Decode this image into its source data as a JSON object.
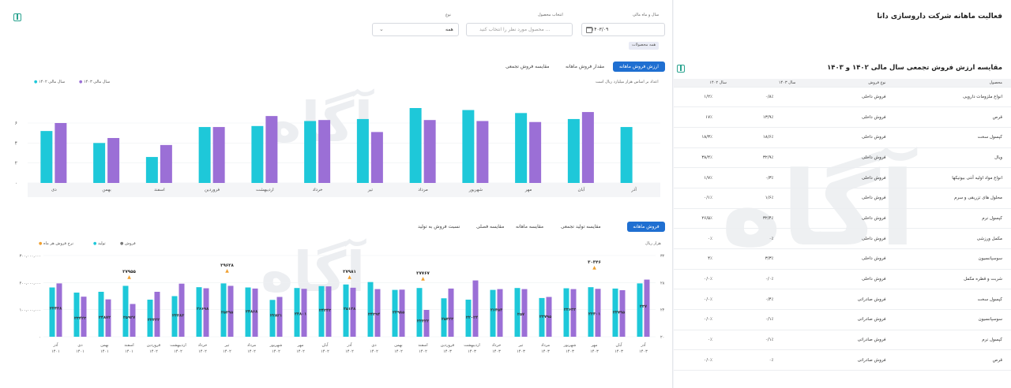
{
  "page": {
    "title": "فعالیت ماهانه شرکت داروسازی دانا"
  },
  "filters": {
    "year_month_label": "سال و ماه مالی",
    "year_month_value": "۱۴۰۳/۰۹",
    "product_label": "انتخاب محصول",
    "product_placeholder": "محصول مورد نظر را انتخاب کنید ...",
    "type_label": "نوع",
    "type_value": "همه",
    "all_products_chip": "همه محصولات"
  },
  "chart1": {
    "tabs": [
      "ارزش فروش ماهانه",
      "مقدار فروش ماهانه",
      "مقایسه فروش تجمعی"
    ],
    "note": "اعداد بر اساس هزار میلیارد ریال است",
    "legend": [
      "سال مالی ۱۴۰۳",
      "سال مالی ۱۴۰۲"
    ]
  },
  "chart2": {
    "tabs": [
      "فروش ماهانه",
      "مقایسه تولید تجمعی",
      "مقایسه ماهانه",
      "مقایسه فصلی",
      "نسبت فروش به تولید"
    ],
    "legend": [
      "فروش",
      "تولید",
      "نرخ فروش هر ماه"
    ],
    "unit": "هزار ریال"
  },
  "table": {
    "title": "مقایسه ارزش فروش تجمعی سال مالی ۱۴۰۲ و ۱۴۰۳",
    "headers": [
      "محصول",
      "نوع فروش",
      "سال ۱۴۰۳",
      "سال ۱۴۰۲"
    ],
    "rows": [
      [
        "انواع ملزومات دارویی",
        "فروش داخلی",
        "۰/۸٪",
        "۱/۲٪"
      ],
      [
        "قرص",
        "فروش داخلی",
        "۱۳/۹٪",
        "۱۷٪"
      ],
      [
        "کپسول سخت",
        "فروش داخلی",
        "۱۸/۶٪",
        "۱۸/۳٪"
      ],
      [
        "ویال",
        "فروش داخلی",
        "۳۲/۹٪",
        "۳۸/۴٪"
      ],
      [
        "انواع مواد اولیه آنتی بیوتیکها",
        "فروش داخلی",
        "۰/۳٪",
        "۱/۷٪"
      ],
      [
        "محلول های تزریقی و سرم",
        "فروش داخلی",
        "۱/۶٪",
        "۰/۱٪"
      ],
      [
        "کپسول نرم",
        "فروش داخلی",
        "۳۲/۴٪",
        "۲۶/۵٪"
      ],
      [
        "مکمل ورزشی",
        "فروش داخلی",
        "۰٪",
        "۰٪"
      ],
      [
        "سوسپانسیون",
        "فروش داخلی",
        "۳/۳٪",
        "۴٪"
      ],
      [
        "شربت و قطره مکمل",
        "فروش داخلی",
        "۰/۰٪",
        "۰/۰٪"
      ],
      [
        "کپسول سخت",
        "فروش صادراتی",
        "۰/۴٪",
        "۰/۰٪"
      ],
      [
        "سوسپانسیون",
        "فروش صادراتی",
        "۰/۱٪",
        "۰/۰٪"
      ],
      [
        "کپسول نرم",
        "فروش صادراتی",
        "۰/۱٪",
        "۰٪"
      ],
      [
        "قرص",
        "فروش صادراتی",
        "۰٪",
        "۰/۰٪"
      ]
    ]
  },
  "chart_data": [
    {
      "type": "bar",
      "categories": [
        "آذر",
        "آبان",
        "مهر",
        "شهریور",
        "مرداد",
        "تیر",
        "خرداد",
        "اردیبهشت",
        "فروردین",
        "اسفند",
        "بهمن",
        "دی"
      ],
      "series": [
        {
          "name": "سال مالی ۱۴۰۳",
          "values": [
            null,
            7.1,
            6.1,
            6.2,
            6.3,
            5.1,
            6.3,
            6.7,
            5.6,
            3.8,
            4.5,
            6.0
          ],
          "color": "#9b6fd6"
        },
        {
          "name": "سال مالی ۱۴۰۲",
          "values": [
            5.6,
            6.4,
            7.0,
            7.3,
            7.5,
            6.4,
            6.2,
            5.7,
            5.6,
            2.6,
            4.0,
            5.2
          ],
          "color": "#1ec8d9"
        }
      ],
      "ylim": [
        0,
        9
      ],
      "yticks": [
        "۰",
        "۲",
        "۴",
        "۶"
      ]
    },
    {
      "type": "bar",
      "x": [
        "آذر ۱۴۰۳",
        "آبان ۱۴۰۳",
        "مهر ۱۴۰۳",
        "شهریور ۱۴۰۳",
        "مرداد ۱۴۰۳",
        "تیر ۱۴۰۳",
        "خرداد ۱۴۰۳",
        "اردیبهشت ۱۴۰۳",
        "فروردین ۱۴۰۳",
        "اسفند ۱۴۰۲",
        "بهمن ۱۴۰۲",
        "دی ۱۴۰۲",
        "آذر ۱۴۰۲",
        "آبان ۱۴۰۲",
        "مهر ۱۴۰۲",
        "شهریور ۱۴۰۲",
        "مرداد ۱۴۰۲",
        "تیر ۱۴۰۲",
        "خرداد ۱۴۰۲",
        "اردیبهشت ۱۴۰۲",
        "فروردین ۱۴۰۲",
        "اسفند ۱۴۰۱",
        "بهمن ۱۴۰۱",
        "دی ۱۴۰۱",
        "آذر ۱۴۰۱"
      ],
      "series": [
        {
          "name": "فروش",
          "values": [
            197,
            178,
            183,
            179,
            143,
            180,
            173,
            137,
            142,
            180,
            173,
            202,
            193,
            187,
            180,
            136,
            182,
            197,
            183,
            150,
            137,
            188,
            166,
            163,
            182
          ],
          "color": "#1ec8d9"
        },
        {
          "name": "تولید",
          "values": [
            211,
            172,
            177,
            176,
            147,
            176,
            176,
            208,
            178,
            99,
            174,
            176,
            181,
            186,
            177,
            147,
            178,
            188,
            179,
            196,
            166,
            121,
            138,
            148,
            197
          ],
          "color": "#9b6fd6"
        }
      ],
      "bar_labels": [
        "۲۳۷",
        "۲۳۷۹۵",
        "۲۳۴۰۱",
        "۲۳۶۳۳",
        "۲۳۷۹۵",
        "۲۵۷",
        "۲۶۴۵۴",
        "۲۲۰۲۴",
        "۲۵۳۲۳",
        "۲۳۳۲۳",
        "۲۳۹۸۵",
        "۲۴۲۹۴",
        "۲۵۱۲۸",
        "۲۴۲۴۳",
        "۲۳۸۰۱",
        "۲۲۸۲۱",
        "۲۴۸۶۸",
        "۲۵۲۹۵",
        "۲۶۶۹۸",
        "۲۳۳۸۳",
        "۲۲۳۲۲",
        "۲۵۹۲۷",
        "۲۴۸۷۲",
        "۲۳۴۲۳",
        "۲۳۴۳۸"
      ],
      "markers": [
        {
          "x": "مهر ۱۴۰۳",
          "label": "۳۰۳۴۶"
        },
        {
          "x": "اسفند ۱۴۰۲",
          "label": "۲۷۷۶۷"
        },
        {
          "x": "آذر ۱۴۰۲",
          "label": "۲۷۹۸۱"
        },
        {
          "x": "تیر ۱۴۰۲",
          "label": "۲۹۶۲۸"
        },
        {
          "x": "اسفند ۱۴۰۱",
          "label": "۲۷۹۵۵"
        }
      ],
      "ylim": [
        0,
        300000000
      ],
      "yticks_left": [
        "۰",
        "۱۰۰,۰۰۰,۰۰۰",
        "۲۰۰,۰۰۰,۰۰۰",
        "۳۰۰,۰۰۰,۰۰۰"
      ],
      "yticks_right": [
        "۲۰",
        "۲۴",
        "۲۸",
        "۳۲"
      ]
    }
  ]
}
